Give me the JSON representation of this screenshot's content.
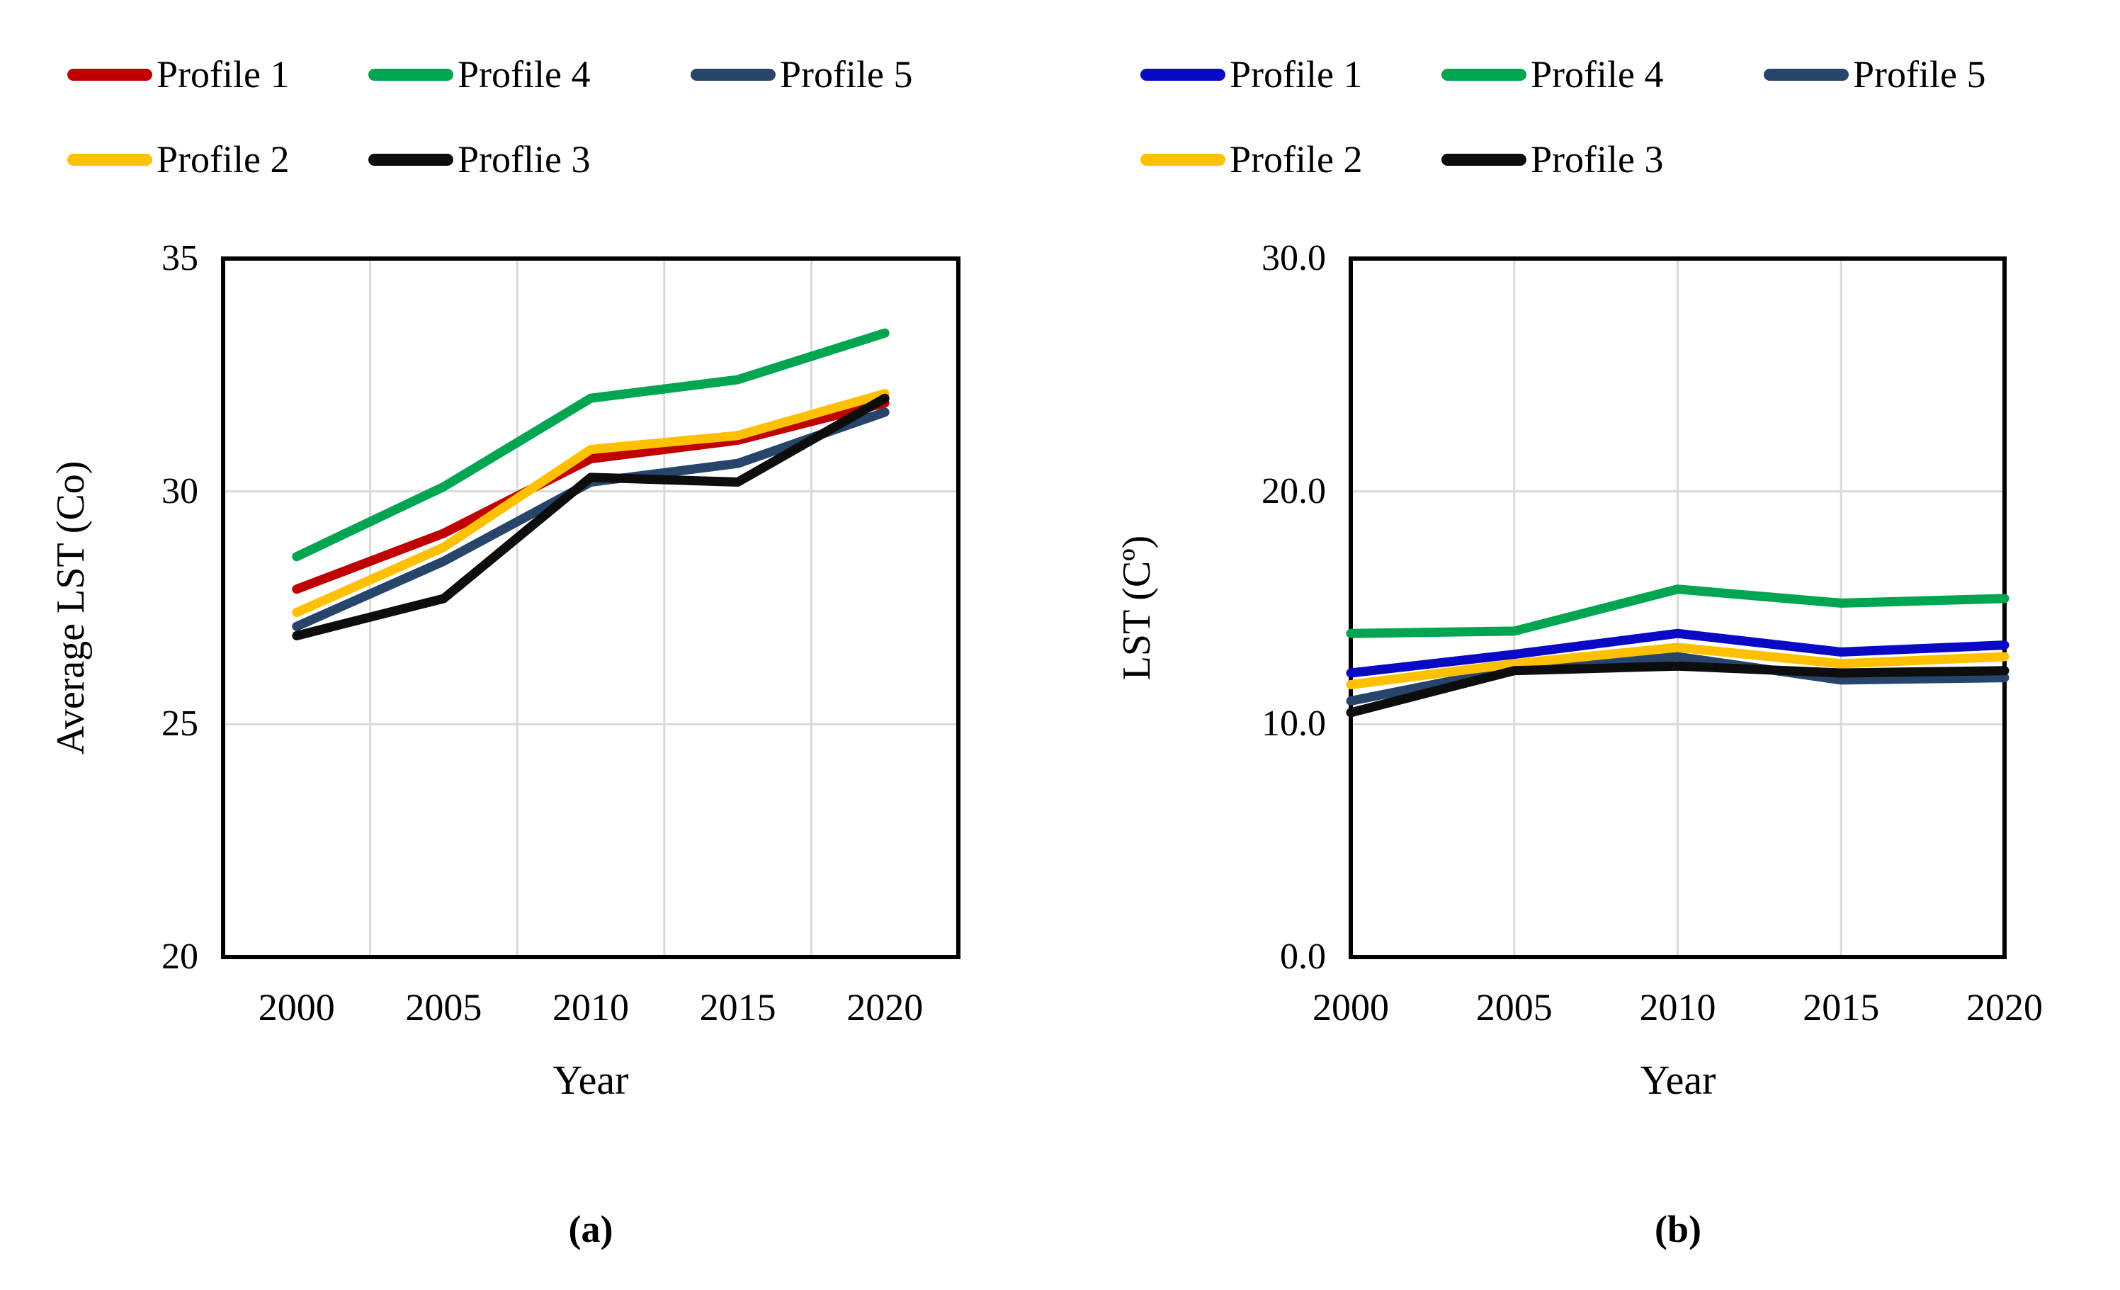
{
  "figure": {
    "background": "#ffffff",
    "text_color": "#000000",
    "gridline_color": "#d9d9d9",
    "axis_border_color": "#000000"
  },
  "panels": [
    {
      "id": "a",
      "caption": "(a)",
      "x_title": "Year",
      "y_title": "Average LST (Co)",
      "chart_data": {
        "type": "line",
        "categories": [
          2000,
          2005,
          2010,
          2015,
          2020
        ],
        "x_tick_labels": [
          "2000",
          "2005",
          "2010",
          "2015",
          "2020"
        ],
        "y_ticks": [
          {
            "value": 35,
            "label": "35"
          },
          {
            "value": 30,
            "label": "30"
          },
          {
            "value": 25,
            "label": "25"
          },
          {
            "value": 20,
            "label": "20"
          }
        ],
        "ylim": [
          20,
          35
        ],
        "y_gridlines": [
          30,
          25
        ],
        "grid": true,
        "legend_position": "top",
        "category_placement": "between-ticks",
        "series": [
          {
            "name": "Profile 1",
            "color": "#C00000",
            "values": [
              27.9,
              29.1,
              30.7,
              31.1,
              31.9
            ]
          },
          {
            "name": "Profile 2",
            "color": "#FFC000",
            "values": [
              27.4,
              28.8,
              30.9,
              31.2,
              32.1
            ]
          },
          {
            "name": "Proflie 3",
            "color": "#0D0D0D",
            "values": [
              26.9,
              27.7,
              30.3,
              30.2,
              32.0
            ]
          },
          {
            "name": "Profile 4",
            "color": "#00A551",
            "values": [
              28.6,
              30.1,
              32.0,
              32.4,
              33.4
            ]
          },
          {
            "name": "Profile 5",
            "color": "#27456B",
            "values": [
              27.1,
              28.5,
              30.2,
              30.6,
              31.7
            ]
          }
        ],
        "draw_order": [
          0,
          1,
          4,
          2,
          3
        ],
        "legend_rows": [
          [
            0,
            3,
            4
          ],
          [
            1,
            2
          ]
        ]
      }
    },
    {
      "id": "b",
      "caption": "(b)",
      "x_title": "Year",
      "y_title": "LST (Cº)",
      "chart_data": {
        "type": "line",
        "categories": [
          2000,
          2005,
          2010,
          2015,
          2020
        ],
        "x_tick_labels": [
          "2000",
          "2005",
          "2010",
          "2015",
          "2020"
        ],
        "y_ticks": [
          {
            "value": 30,
            "label": "30.0"
          },
          {
            "value": 20,
            "label": "20.0"
          },
          {
            "value": 10,
            "label": "10.0"
          },
          {
            "value": 0,
            "label": "0.0"
          }
        ],
        "ylim": [
          0,
          30
        ],
        "y_gridlines": [
          20,
          10
        ],
        "grid": true,
        "legend_position": "top",
        "category_placement": "on-ticks",
        "series": [
          {
            "name": "Profile 1",
            "color": "#0A0AC6",
            "values": [
              12.2,
              13.0,
              13.9,
              13.1,
              13.4
            ]
          },
          {
            "name": "Profile 2",
            "color": "#FFC000",
            "values": [
              11.7,
              12.6,
              13.3,
              12.6,
              12.9
            ]
          },
          {
            "name": "Profile 3",
            "color": "#0D0D0D",
            "values": [
              10.5,
              12.3,
              12.5,
              12.2,
              12.3
            ]
          },
          {
            "name": "Profile 4",
            "color": "#00A551",
            "values": [
              13.9,
              14.0,
              15.8,
              15.2,
              15.4
            ]
          },
          {
            "name": "Profile 5",
            "color": "#27456B",
            "values": [
              11.0,
              12.4,
              12.9,
              11.9,
              12.0
            ]
          }
        ],
        "draw_order": [
          4,
          1,
          2,
          0,
          3
        ],
        "legend_rows": [
          [
            0,
            3,
            4
          ],
          [
            1,
            2
          ]
        ]
      }
    }
  ]
}
